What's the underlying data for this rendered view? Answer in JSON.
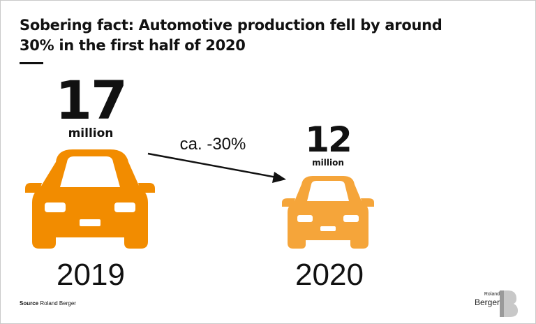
{
  "title": {
    "line1": "Sobering fact: Automotive production fell by around",
    "line2": "30% in the first half of 2020"
  },
  "left": {
    "value": "17",
    "unit": "million",
    "year": "2019",
    "car_color": "#F28C00"
  },
  "right": {
    "value": "12",
    "unit": "million",
    "year": "2020",
    "car_color": "#F5A53A"
  },
  "change_label": "ca. -30%",
  "source": {
    "prefix": "Source",
    "text": "Roland Berger"
  },
  "logo": {
    "small": "Roland",
    "big": "Berger",
    "mark": "B"
  },
  "icons": {
    "left_car": "car-front-icon",
    "right_car": "car-front-icon",
    "arrow": "arrow-right-icon"
  }
}
